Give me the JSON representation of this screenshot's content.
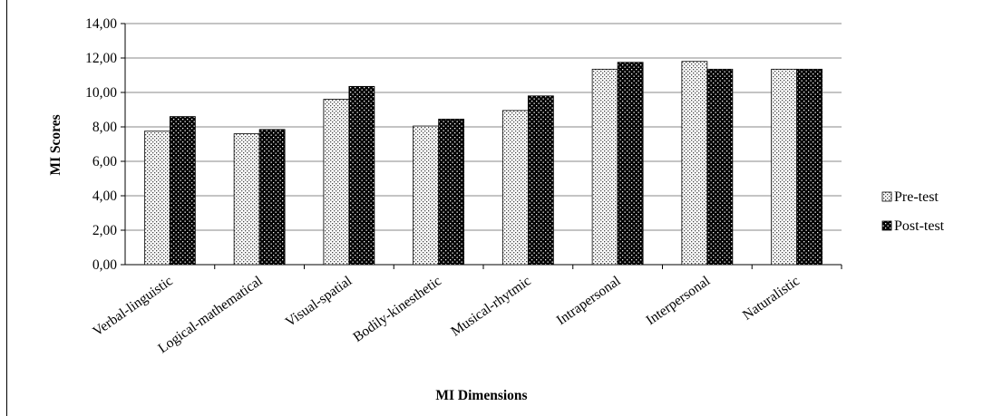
{
  "chart_data": {
    "type": "bar",
    "title": "",
    "xlabel": "MI Dimensions",
    "ylabel": "MI Scores",
    "ylim": [
      0,
      14
    ],
    "yticks": [
      "0,00",
      "2,00",
      "4,00",
      "6,00",
      "8,00",
      "10,00",
      "12,00",
      "14,00"
    ],
    "grid": true,
    "legend_position": "right",
    "categories": [
      "Verbal-linguistic",
      "Logical-mathematical",
      "Visual-spatial",
      "Bodily-kinesthetic",
      "Musical-rhytmic",
      "Intrapersonal",
      "Interpersonal",
      "Naturalistic"
    ],
    "series": [
      {
        "name": "Pre-test",
        "values": [
          7.75,
          7.6,
          9.6,
          8.05,
          8.95,
          11.35,
          11.8,
          11.35
        ]
      },
      {
        "name": "Post-test",
        "values": [
          8.6,
          7.85,
          10.35,
          8.45,
          9.8,
          11.75,
          11.35,
          11.35
        ]
      }
    ]
  }
}
